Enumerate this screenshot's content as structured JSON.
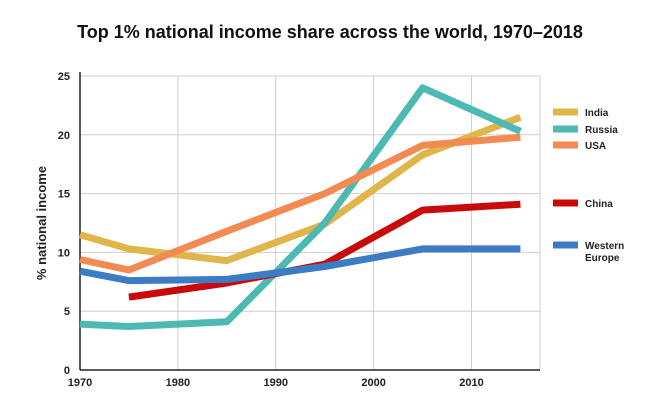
{
  "chart_data": {
    "type": "line",
    "title": "Top 1% national income share across the world, 1970–2018",
    "xlabel": "",
    "ylabel": "% national income",
    "xlim": [
      1970,
      2017
    ],
    "ylim": [
      0,
      25
    ],
    "x_ticks": [
      1970,
      1980,
      1990,
      2000,
      2010
    ],
    "y_ticks": [
      0,
      5,
      10,
      15,
      20,
      25
    ],
    "grid": true,
    "legend_position": "right",
    "series": [
      {
        "name": "India",
        "color": "#E0B54A",
        "points": [
          [
            1970,
            11.5
          ],
          [
            1975,
            10.3
          ],
          [
            1985,
            9.3
          ],
          [
            1995,
            12.4
          ],
          [
            2005,
            18.3
          ],
          [
            2015,
            21.5
          ]
        ]
      },
      {
        "name": "Russia",
        "color": "#4DB9B2",
        "points": [
          [
            1970,
            3.9
          ],
          [
            1975,
            3.7
          ],
          [
            1985,
            4.1
          ],
          [
            1995,
            12.5
          ],
          [
            2005,
            24.0
          ],
          [
            2015,
            20.3
          ]
        ]
      },
      {
        "name": "USA",
        "color": "#F28A52",
        "points": [
          [
            1970,
            9.4
          ],
          [
            1975,
            8.5
          ],
          [
            1985,
            11.8
          ],
          [
            1995,
            15.0
          ],
          [
            2005,
            19.1
          ],
          [
            2015,
            19.8
          ]
        ]
      },
      {
        "name": "China",
        "color": "#C80A0A",
        "points": [
          [
            1975,
            6.2
          ],
          [
            1985,
            7.4
          ],
          [
            1995,
            9.0
          ],
          [
            2005,
            13.6
          ],
          [
            2015,
            14.1
          ]
        ]
      },
      {
        "name": "Western Europe",
        "color": "#3B7CC4",
        "points": [
          [
            1970,
            8.4
          ],
          [
            1975,
            7.6
          ],
          [
            1985,
            7.7
          ],
          [
            1995,
            8.8
          ],
          [
            2005,
            10.3
          ],
          [
            2015,
            10.3
          ]
        ]
      }
    ],
    "legend": [
      {
        "label": "India"
      },
      {
        "label": "Russia"
      },
      {
        "label": "USA"
      },
      {
        "label": "China"
      },
      {
        "label_lines": [
          "Western",
          "Europe"
        ]
      }
    ]
  }
}
